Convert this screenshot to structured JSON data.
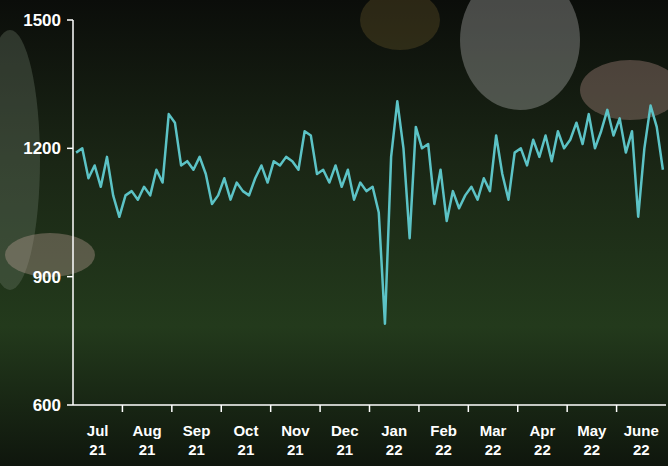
{
  "chart_data": {
    "type": "line",
    "color": "#5cc3c6",
    "categories": [
      null,
      null,
      null,
      null,
      "Jul 21",
      null,
      null,
      null,
      null,
      null,
      null,
      null,
      "Aug 21",
      null,
      null,
      null,
      null,
      null,
      null,
      null,
      "Sep 21",
      null,
      null,
      null,
      null,
      null,
      null,
      null,
      "Oct 21",
      null,
      null,
      null,
      null,
      null,
      null,
      null,
      "Nov 21",
      null,
      null,
      null,
      null,
      null,
      null,
      null,
      "Dec 21",
      null,
      null,
      null,
      null,
      null,
      null,
      null,
      "Jan 22",
      null,
      null,
      null,
      null,
      null,
      null,
      null,
      "Feb 22",
      null,
      null,
      null,
      null,
      null,
      null,
      null,
      "Mar 22",
      null,
      null,
      null,
      null,
      null,
      null,
      null,
      "Apr 22",
      null,
      null,
      null,
      null,
      null,
      null,
      null,
      "May 22",
      null,
      null,
      null,
      null,
      null,
      null,
      null,
      "June 22",
      null,
      null,
      null
    ],
    "values": [
      1190,
      1200,
      1130,
      1160,
      1110,
      1180,
      1090,
      1040,
      1090,
      1100,
      1080,
      1110,
      1090,
      1150,
      1120,
      1280,
      1260,
      1160,
      1170,
      1150,
      1180,
      1140,
      1070,
      1090,
      1130,
      1080,
      1120,
      1100,
      1090,
      1130,
      1160,
      1120,
      1170,
      1160,
      1180,
      1170,
      1150,
      1240,
      1230,
      1140,
      1150,
      1120,
      1160,
      1110,
      1150,
      1080,
      1120,
      1100,
      1110,
      1050,
      790,
      1180,
      1310,
      1200,
      990,
      1250,
      1200,
      1210,
      1070,
      1150,
      1030,
      1100,
      1060,
      1090,
      1110,
      1080,
      1130,
      1100,
      1230,
      1140,
      1080,
      1190,
      1200,
      1160,
      1220,
      1180,
      1230,
      1170,
      1240,
      1200,
      1220,
      1260,
      1210,
      1280,
      1200,
      1240,
      1290,
      1230,
      1270,
      1190,
      1240,
      1040,
      1200,
      1300,
      1250,
      1150
    ],
    "ylim": [
      600,
      1500
    ],
    "yticks": [
      600,
      900,
      1200,
      1500
    ],
    "grid": false
  }
}
